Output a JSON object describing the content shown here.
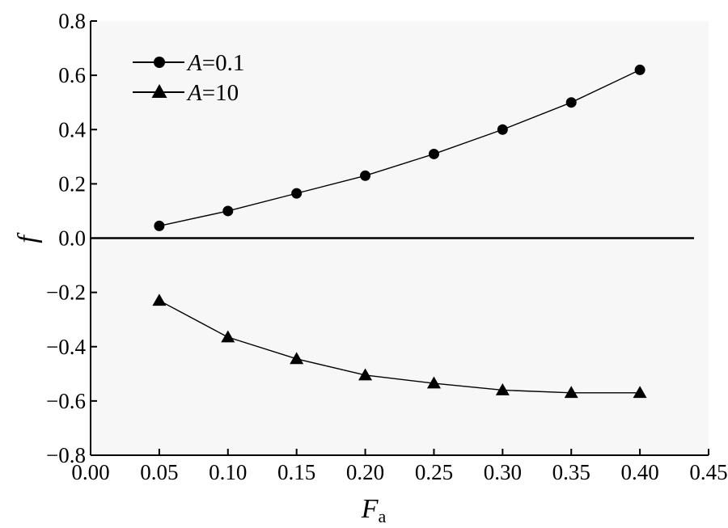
{
  "chart_data": {
    "type": "line",
    "xlabel": "F",
    "xlabel_sub": "a",
    "ylabel": "f",
    "xlim": [
      0.0,
      0.45
    ],
    "ylim": [
      -0.8,
      0.8
    ],
    "x_ticks": [
      0.0,
      0.05,
      0.1,
      0.15,
      0.2,
      0.25,
      0.3,
      0.35,
      0.4,
      0.45
    ],
    "x_tick_labels": [
      "0.00",
      "0.05",
      "0.10",
      "0.15",
      "0.20",
      "0.25",
      "0.30",
      "0.35",
      "0.40",
      "0.45"
    ],
    "y_ticks": [
      0.8,
      0.6,
      0.4,
      0.2,
      0.0,
      -0.2,
      -0.4,
      -0.6,
      -0.8
    ],
    "y_tick_labels": [
      "0.8",
      "0.6",
      "0.4",
      "0.2",
      "0.0",
      "−0.2",
      "−0.4",
      "−0.6",
      "−0.8"
    ],
    "zero_line": true,
    "grid": false,
    "legend_position": "top-left",
    "x": [
      0.05,
      0.1,
      0.15,
      0.2,
      0.25,
      0.3,
      0.35,
      0.4
    ],
    "series": [
      {
        "name_var": "A",
        "name_value": "=0.1",
        "marker": "circle",
        "color": "#000000",
        "values": [
          0.045,
          0.1,
          0.165,
          0.23,
          0.31,
          0.4,
          0.5,
          0.62
        ]
      },
      {
        "name_var": "A",
        "name_value": "=10",
        "marker": "triangle",
        "color": "#000000",
        "values": [
          -0.23,
          -0.365,
          -0.445,
          -0.505,
          -0.535,
          -0.56,
          -0.57,
          -0.57
        ]
      }
    ]
  }
}
